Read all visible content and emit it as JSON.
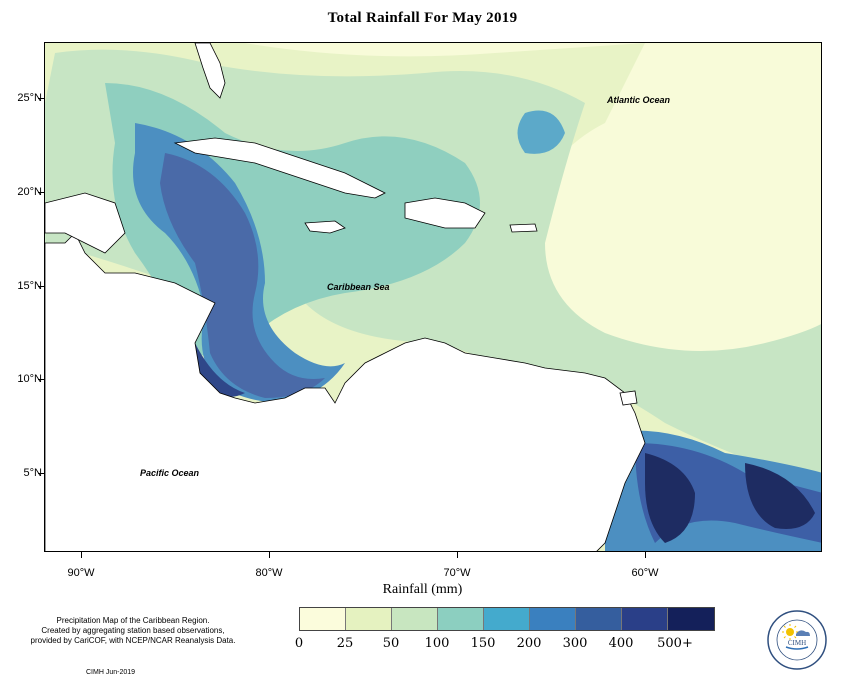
{
  "map": {
    "title": "Total Rainfall For May 2019",
    "labels": {
      "atlantic": "Atlantic Ocean",
      "caribbean": "Caribbean Sea",
      "pacific": "Pacific Ocean"
    },
    "latitude_labels": [
      "25°N",
      "20°N",
      "15°N",
      "10°N",
      "5°N"
    ],
    "longitude_labels": [
      "90°W",
      "80°W",
      "70°W",
      "60°W"
    ],
    "axis_title": "Rainfall (mm)",
    "legend": {
      "labels": [
        "0",
        "25",
        "50",
        "100",
        "150",
        "200",
        "300",
        "400",
        "500+"
      ],
      "colors": [
        "#fbfcdc",
        "#e5f2c0",
        "#c8e6c0",
        "#8ccfc0",
        "#44aacd",
        "#3a80bf",
        "#355e9e",
        "#2a3f88",
        "#14205a"
      ]
    },
    "credits": {
      "line1": "Precipitation Map of the Caribbean Region.",
      "line2": "Created by aggregating station based observations,",
      "line3": "provided by CariCOF, with NCEP/NCAR Reanalysis Data.",
      "date": "CIMH Jun-2019"
    },
    "logo": {
      "icon": "cimh-logo-icon",
      "text": "CIMH"
    }
  }
}
